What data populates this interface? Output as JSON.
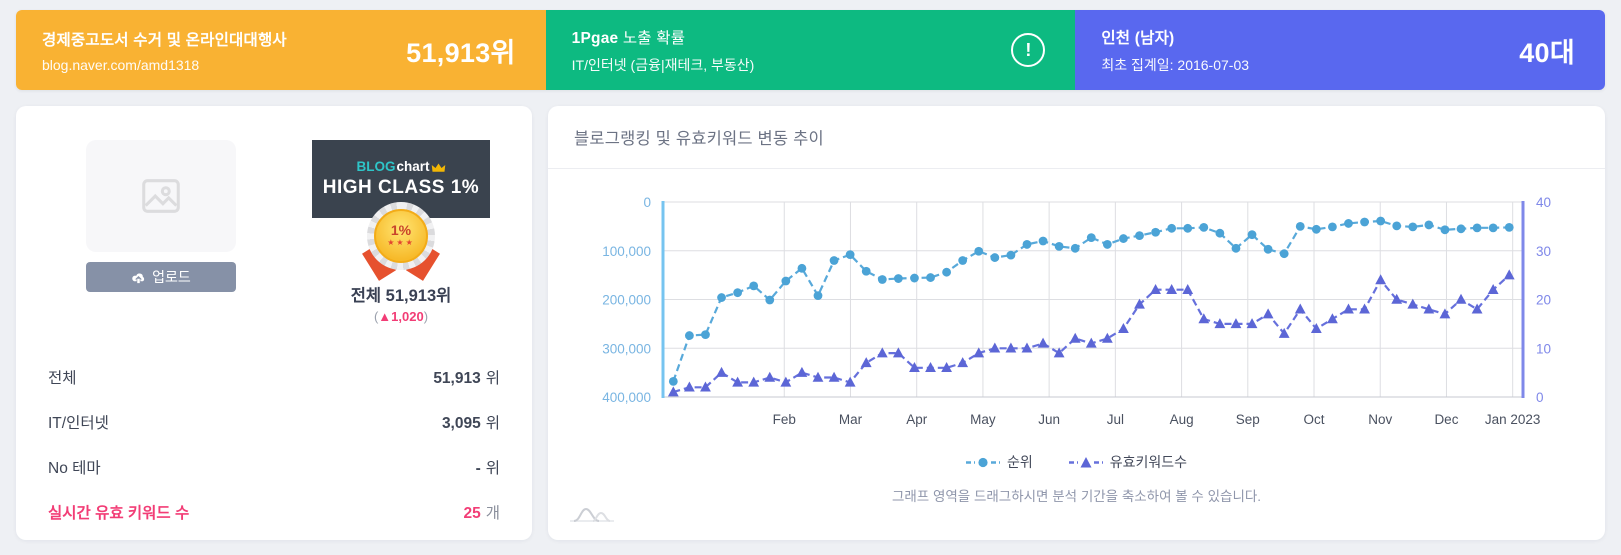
{
  "top_cards": {
    "blog": {
      "title": "경제중고도서 수거 및 온라인대대행사",
      "subtitle": "blog.naver.com/amd1318",
      "value": "51,913위",
      "bg": "#F9B233"
    },
    "exposure": {
      "title_strong": "1Pgae",
      "title_rest": " 노출 확률",
      "subtitle": "IT/인터넷 (금융|재테크, 부동산)",
      "icon": "alert-circle-icon",
      "bg": "#0DBA81"
    },
    "profile": {
      "title": "인천 (남자)",
      "subtitle": "최초 집계일: 2016-07-03",
      "value": "40대",
      "bg": "#5968EF"
    }
  },
  "left_panel": {
    "image_placeholder_icon": "image-placeholder-icon",
    "upload": {
      "label": "업로드",
      "icon": "cloud-upload-icon",
      "bg": "#8691A7"
    },
    "badge": {
      "logo_blog": "BLOG",
      "logo_chart": "chart",
      "crown_icon": "crown-icon",
      "class_text": "HIGH CLASS 1%",
      "medal_text": "1%",
      "stars": "★★★",
      "rank_text": "전체 51,913위",
      "delta_open": "(",
      "delta": "▲1,020",
      "delta_close": ")",
      "delta_color": "#F23D76"
    },
    "stats": [
      {
        "label": "전체",
        "value": "51,913",
        "unit": "위"
      },
      {
        "label": "IT/인터넷",
        "value": "3,095",
        "unit": "위"
      },
      {
        "label": "No 테마",
        "value": "-",
        "unit": "위"
      },
      {
        "label": "실시간 유효 키워드 수",
        "value": "25",
        "unit": "개"
      }
    ]
  },
  "chart_panel": {
    "title": "블로그랭킹 및 유효키워드 변동 추이",
    "hint": "그래프 영역을 드래그하시면 분석 기간을 축소하여 볼 수 있습니다.",
    "mini_icon": "mini-area-chart-icon"
  },
  "chart_data": {
    "type": "line",
    "x_tick_labels": [
      "Feb",
      "Mar",
      "Apr",
      "May",
      "Jun",
      "Jul",
      "Aug",
      "Sep",
      "Oct",
      "Nov",
      "Dec",
      "Jan 2023"
    ],
    "left_axis": {
      "ticks": [
        "0",
        "100,000",
        "200,000",
        "300,000",
        "400,000"
      ],
      "min": 0,
      "max": 400000,
      "inverted": true,
      "color": "#79B5E2",
      "border_color": "#76C4F0"
    },
    "right_axis": {
      "ticks": [
        "40",
        "30",
        "20",
        "10",
        "0"
      ],
      "min": 0,
      "max": 40,
      "color": "#7F88E9",
      "border_color": "#7F88E9"
    },
    "grid": true,
    "legend_position": "bottom",
    "series": [
      {
        "name": "순위",
        "axis": "left",
        "marker": "circle",
        "color": "#4BA3D6",
        "line_color": "#58A9DA",
        "values": [
          368000,
          274000,
          272000,
          196000,
          186000,
          172000,
          201000,
          162000,
          136000,
          192000,
          120000,
          108000,
          142000,
          159000,
          157000,
          156000,
          155000,
          144000,
          120000,
          101000,
          114000,
          109000,
          87000,
          80000,
          91000,
          95000,
          73000,
          87000,
          75000,
          69000,
          62000,
          54000,
          54000,
          52000,
          64000,
          95000,
          67000,
          97000,
          106000,
          50000,
          56000,
          51000,
          44000,
          41000,
          39000,
          49000,
          51000,
          47000,
          57000,
          55000,
          53000,
          53000,
          52000
        ]
      },
      {
        "name": "유효키워드수",
        "axis": "right",
        "marker": "triangle",
        "color": "#5C66D6",
        "line_color": "#6670DC",
        "values": [
          1,
          2,
          2,
          5,
          3,
          3,
          4,
          3,
          5,
          4,
          4,
          3,
          7,
          9,
          9,
          6,
          6,
          6,
          7,
          9,
          10,
          10,
          10,
          11,
          9,
          12,
          11,
          12,
          14,
          19,
          22,
          22,
          22,
          16,
          15,
          15,
          15,
          17,
          13,
          18,
          14,
          16,
          18,
          18,
          24,
          20,
          19,
          18,
          17,
          20,
          18,
          22,
          25
        ]
      }
    ]
  }
}
